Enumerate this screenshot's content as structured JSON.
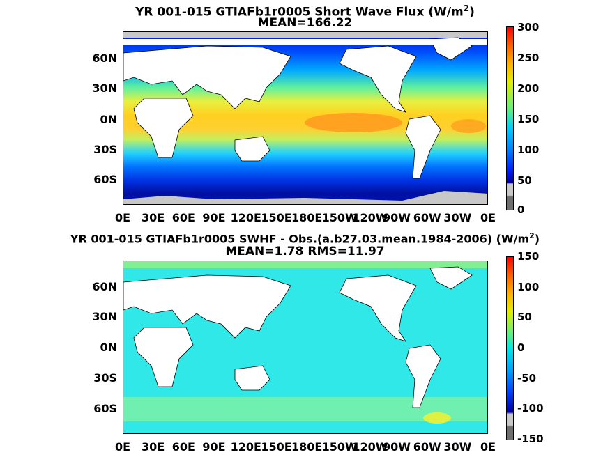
{
  "chart_data": [
    {
      "type": "heatmap",
      "title_line1": "YR 001-015 GTIAFb1r0005  Short Wave Flux (W/m",
      "title_sup": "2",
      "title_close": ")",
      "subtitle": "MEAN=166.22",
      "y_ticks": [
        "60N",
        "30N",
        "0N",
        "30S",
        "60S"
      ],
      "x_ticks": [
        "0E",
        "30E",
        "60E",
        "90E",
        "120E",
        "150E",
        "180E",
        "150W",
        "120W",
        "90W",
        "60W",
        "30W",
        "0E"
      ],
      "colorbar_ticks": [
        "300",
        "250",
        "200",
        "150",
        "100",
        "50",
        "0"
      ],
      "colorbar_range": [
        0,
        300
      ],
      "mean": 166.22,
      "description_scale": "Shortwave heat flux: high (~250) in tropics, low (<50) in polar regions"
    },
    {
      "type": "heatmap",
      "title_line1": "YR 001-015 GTIAFb1r0005 SWHF - Obs.(a.b27.03.mean.1984-2006) (W/m",
      "title_sup": "2",
      "title_close": ")",
      "subtitle": "MEAN=1.78 RMS=11.97",
      "y_ticks": [
        "60N",
        "30N",
        "0N",
        "30S",
        "60S"
      ],
      "x_ticks": [
        "0E",
        "30E",
        "60E",
        "90E",
        "120E",
        "150E",
        "180E",
        "150W",
        "120W",
        "90W",
        "60W",
        "30W",
        "0E"
      ],
      "colorbar_ticks": [
        "150",
        "100",
        "50",
        "0",
        "-50",
        "-100",
        "-150"
      ],
      "colorbar_range": [
        -150,
        150
      ],
      "mean": 1.78,
      "rms": 11.97
    }
  ],
  "colors": {
    "land": "#ffffff",
    "missing": "#c8c8c8",
    "below_range": "#6e6e6e"
  }
}
